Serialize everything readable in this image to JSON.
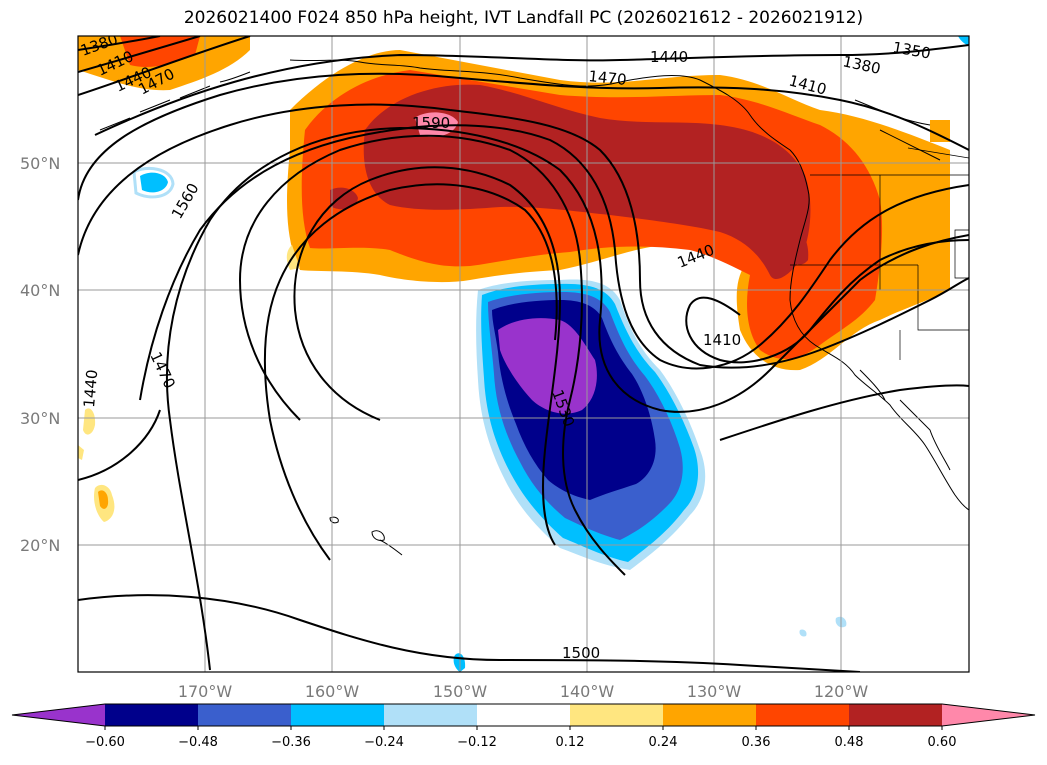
{
  "title": "2026021400 F024 850 hPa height, IVT Landfall PC (2026021612 - 2026021912)",
  "map": {
    "lat_ticks": [
      "50°N",
      "40°N",
      "30°N",
      "20°N"
    ],
    "lon_ticks": [
      "170°W",
      "160°W",
      "150°W",
      "140°W",
      "130°W",
      "120°W"
    ],
    "contour_labels": [
      "1380",
      "1410",
      "1440",
      "1470",
      "1590",
      "1560",
      "1470",
      "1440",
      "1530",
      "1440",
      "1410",
      "1500",
      "1470",
      "1410",
      "1380",
      "1350",
      "1440"
    ],
    "fill_colors": {
      "red_strong": "#b22222",
      "red": "#ff4500",
      "orange": "#ffa500",
      "yellow": "#ffe680",
      "pink": "#ff88aa",
      "purple": "#9933cc",
      "navy": "#00008b",
      "blue": "#3a5fcd",
      "cyan": "#00bfff",
      "light_cyan": "#b0e0f8"
    }
  },
  "colorbar": {
    "colors": [
      "#9933cc",
      "#00008b",
      "#3a5fcd",
      "#00bfff",
      "#b0e0f8",
      "#ffffff",
      "#ffe680",
      "#ffa500",
      "#ff4500",
      "#b22222",
      "#ff88aa"
    ],
    "tick_labels": [
      "−0.60",
      "−0.48",
      "−0.36",
      "−0.24",
      "−0.12",
      "0.12",
      "0.24",
      "0.36",
      "0.48",
      "0.60"
    ]
  }
}
